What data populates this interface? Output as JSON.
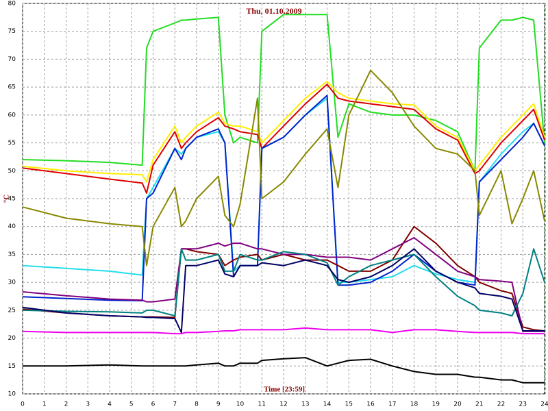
{
  "chart_data": {
    "type": "line",
    "title": "Thu, 01.10.2009",
    "x_label": "Time [23:59]",
    "y_label": "°C",
    "xlim": [
      0,
      24
    ],
    "ylim": [
      10,
      80
    ],
    "xticks": [
      0,
      1,
      2,
      3,
      4,
      5,
      6,
      7,
      8,
      9,
      10,
      11,
      12,
      13,
      14,
      15,
      16,
      17,
      18,
      19,
      20,
      21,
      22,
      23,
      24
    ],
    "yticks": [
      10,
      15,
      20,
      25,
      30,
      35,
      40,
      45,
      50,
      55,
      60,
      65,
      70,
      75,
      80
    ],
    "grid": true,
    "x": [
      0,
      2,
      4,
      5.5,
      5.7,
      6,
      7,
      7.3,
      7.5,
      8,
      9,
      9.3,
      9.7,
      10,
      10.8,
      11,
      12,
      13,
      14,
      14.5,
      15,
      16,
      17,
      18,
      19,
      20,
      20.8,
      21,
      22,
      22.5,
      23,
      23.5,
      24
    ],
    "series": [
      {
        "color": "#22dd22",
        "values": [
          52,
          51.8,
          51.5,
          51,
          72,
          75,
          76.5,
          77,
          77,
          77.2,
          77.5,
          60,
          55,
          56,
          55,
          75,
          78,
          78,
          78,
          56,
          62,
          60.5,
          60,
          60,
          59,
          57,
          50,
          72,
          77,
          77,
          77.5,
          77,
          55
        ]
      },
      {
        "color": "#ffee00",
        "values": [
          50.8,
          50,
          49.5,
          49.3,
          48,
          52,
          58,
          55,
          56,
          58,
          60.5,
          58.5,
          58,
          58,
          57,
          55,
          59,
          63,
          66,
          64,
          63,
          62.5,
          62,
          61.8,
          58,
          56,
          50,
          51,
          56,
          58,
          60,
          62,
          56
        ]
      },
      {
        "color": "#dd0000",
        "values": [
          50.5,
          49.5,
          48.5,
          47.8,
          46,
          51,
          57,
          54,
          55,
          57,
          59.5,
          58,
          57.5,
          57,
          56.5,
          54,
          58,
          62,
          65.5,
          63,
          62.5,
          62,
          61.5,
          61,
          57.5,
          55.5,
          49.5,
          50,
          55,
          57,
          59,
          61,
          55.5
        ]
      },
      {
        "color": "#22ddee",
        "values": [
          33,
          32.5,
          32,
          31.3,
          45,
          47,
          54,
          53,
          54,
          56,
          57,
          55,
          32,
          33,
          33,
          54,
          56,
          60,
          63,
          30,
          30,
          30.5,
          31,
          33,
          31.5,
          30.5,
          30,
          48,
          53,
          55,
          57,
          58.5,
          54.5
        ]
      },
      {
        "color": "#0022cc",
        "values": [
          27.4,
          27.1,
          26.8,
          26.7,
          45,
          46,
          54,
          52,
          54,
          56,
          57.5,
          55,
          31,
          33,
          33,
          54,
          56,
          60,
          63.5,
          29.5,
          29.5,
          30,
          32,
          35,
          32,
          30,
          29.5,
          48,
          52,
          54,
          56,
          58.5,
          54.5
        ]
      },
      {
        "color": "#888800",
        "values": [
          43.5,
          41.5,
          40.5,
          40,
          33,
          40,
          47,
          40,
          41,
          45,
          49,
          42,
          40,
          44,
          63,
          45,
          48,
          53,
          57.5,
          47,
          60,
          68,
          64,
          58,
          54,
          53,
          50,
          42,
          50,
          40.5,
          45,
          50,
          41
        ]
      },
      {
        "color": "#800000",
        "values": [
          25.2,
          24.5,
          24,
          23.8,
          23.8,
          23.8,
          23.7,
          36,
          36,
          35.5,
          35,
          33,
          34,
          34.5,
          35,
          34,
          35,
          34,
          34,
          33,
          32,
          32,
          34,
          40,
          37,
          33,
          31,
          30,
          28.5,
          28,
          22,
          21.5,
          21.3
        ]
      },
      {
        "color": "#800080",
        "values": [
          28.3,
          27.6,
          27,
          26.8,
          26.5,
          26.5,
          27,
          36,
          36,
          36,
          37,
          36.5,
          37,
          37,
          36,
          36,
          35,
          35,
          34.5,
          34.5,
          34.5,
          34,
          36,
          38,
          35,
          32,
          31,
          30.5,
          30.2,
          30,
          21.2,
          21.2,
          21.2
        ]
      },
      {
        "color": "#008080",
        "values": [
          25,
          24.8,
          24.7,
          24.5,
          25,
          25,
          24,
          36,
          34,
          34,
          35,
          32,
          32,
          35,
          34,
          34,
          35.5,
          35,
          33.5,
          29.5,
          31,
          33,
          34,
          35,
          31,
          27.5,
          25.8,
          25,
          24.5,
          24,
          28,
          36,
          30
        ]
      },
      {
        "color": "#000066",
        "values": [
          25.5,
          24.5,
          24,
          23.8,
          23.7,
          23.7,
          23.5,
          21,
          33,
          33,
          34,
          31.5,
          31,
          33,
          33,
          33.5,
          33,
          34,
          33,
          30.5,
          30,
          31,
          33,
          36,
          32,
          30,
          29,
          28,
          27.5,
          27,
          21.3,
          21.3,
          21.3
        ]
      },
      {
        "color": "#ee00ee",
        "values": [
          21.2,
          21,
          21,
          21,
          21,
          21,
          20.8,
          20.8,
          21,
          21,
          21.2,
          21.3,
          21.3,
          21.5,
          21.5,
          21.5,
          21.5,
          21.8,
          21.5,
          21.5,
          21.5,
          21.5,
          21,
          21.5,
          21.5,
          21.2,
          21,
          21,
          21,
          21,
          20.8,
          20.8,
          20.8
        ]
      },
      {
        "color": "#000000",
        "values": [
          15,
          15,
          15.2,
          15,
          15,
          15,
          15,
          15,
          15,
          15.2,
          15.5,
          15,
          15,
          15.5,
          15.5,
          16,
          16.3,
          16.5,
          15,
          15.5,
          16,
          16.2,
          15,
          14,
          13.5,
          13.5,
          13,
          13,
          12.5,
          12.5,
          12,
          12,
          12
        ]
      }
    ]
  }
}
